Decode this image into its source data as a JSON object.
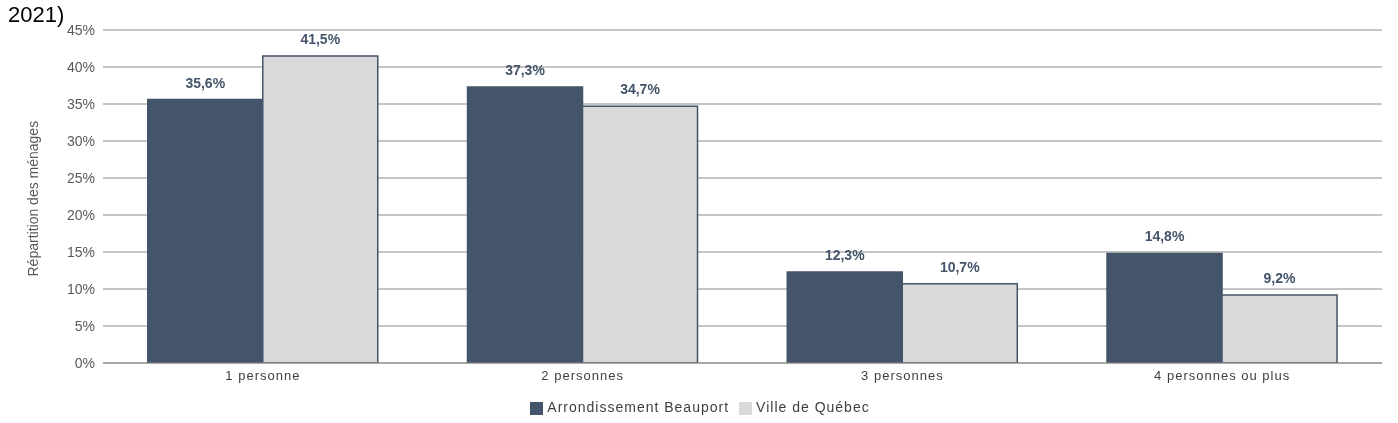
{
  "chart_data": {
    "type": "bar",
    "title": "2021)",
    "ylabel": "Répartition des ménages",
    "categories": [
      "1 personne",
      "2 personnes",
      "3 personnes",
      "4 personnes ou plus"
    ],
    "series": [
      {
        "name": "Arrondissement Beauport",
        "color": "#44546a",
        "values": [
          35.6,
          37.3,
          12.3,
          14.8
        ],
        "value_labels": [
          "35,6%",
          "37,3%",
          "12,3%",
          "14,8%"
        ]
      },
      {
        "name": "Ville de Québec",
        "color": "#d9d9d9",
        "values": [
          41.5,
          34.7,
          10.7,
          9.2
        ],
        "value_labels": [
          "41,5%",
          "34,7%",
          "10,7%",
          "9,2%"
        ]
      }
    ],
    "ylim": [
      0,
      45
    ],
    "yticks": [
      {
        "value": 0,
        "label": "0%"
      },
      {
        "value": 5,
        "label": "5%"
      },
      {
        "value": 10,
        "label": "10%"
      },
      {
        "value": 15,
        "label": "15%"
      },
      {
        "value": 20,
        "label": "20%"
      },
      {
        "value": 25,
        "label": "25%"
      },
      {
        "value": 30,
        "label": "30%"
      },
      {
        "value": 35,
        "label": "35%"
      },
      {
        "value": 40,
        "label": "40%"
      },
      {
        "value": 45,
        "label": "45%"
      }
    ],
    "grid": "y",
    "legend": "bottom"
  }
}
